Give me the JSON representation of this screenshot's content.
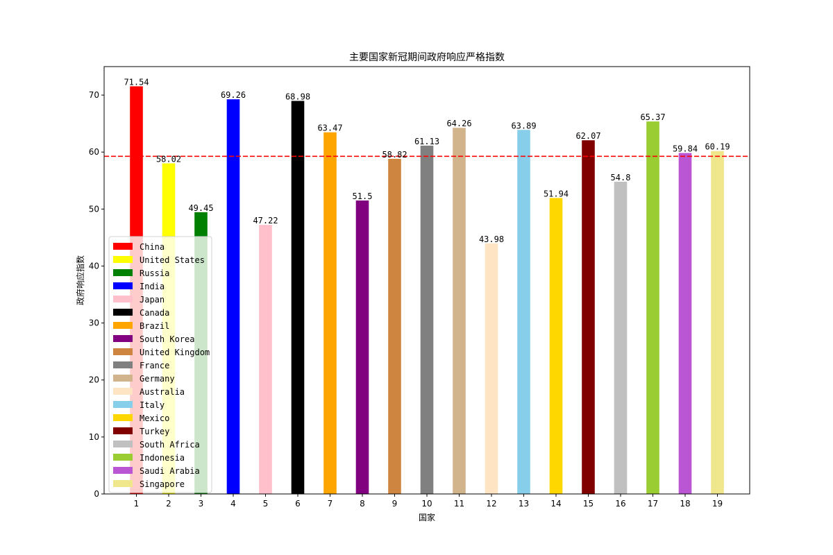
{
  "chart_data": {
    "type": "bar",
    "title": "主要国家新冠期间政府响应严格指数",
    "xlabel": "国家",
    "ylabel": "政府响应指数",
    "categories": [
      "1",
      "2",
      "3",
      "4",
      "5",
      "6",
      "7",
      "8",
      "9",
      "10",
      "11",
      "12",
      "13",
      "14",
      "15",
      "16",
      "17",
      "18",
      "19"
    ],
    "series": [
      {
        "name": "China",
        "value": 71.54,
        "label": "71.54",
        "color": "#ff0000"
      },
      {
        "name": "United States",
        "value": 58.02,
        "label": "58.02",
        "color": "#ffff00"
      },
      {
        "name": "Russia",
        "value": 49.45,
        "label": "49.45",
        "color": "#008000"
      },
      {
        "name": "India",
        "value": 69.26,
        "label": "69.26",
        "color": "#0000ff"
      },
      {
        "name": "Japan",
        "value": 47.22,
        "label": "47.22",
        "color": "#ffc0cb"
      },
      {
        "name": "Canada",
        "value": 68.98,
        "label": "68.98",
        "color": "#000000"
      },
      {
        "name": "Brazil",
        "value": 63.47,
        "label": "63.47",
        "color": "#ffa500"
      },
      {
        "name": "South Korea",
        "value": 51.5,
        "label": "51.5",
        "color": "#800080"
      },
      {
        "name": "United Kingdom",
        "value": 58.82,
        "label": "58.82",
        "color": "#cd853f"
      },
      {
        "name": "France",
        "value": 61.13,
        "label": "61.13",
        "color": "#808080"
      },
      {
        "name": "Germany",
        "value": 64.26,
        "label": "64.26",
        "color": "#d2b48c"
      },
      {
        "name": "Australia",
        "value": 43.98,
        "label": "43.98",
        "color": "#ffe4c4"
      },
      {
        "name": "Italy",
        "value": 63.89,
        "label": "63.89",
        "color": "#87ceeb"
      },
      {
        "name": "Mexico",
        "value": 51.94,
        "label": "51.94",
        "color": "#ffd700"
      },
      {
        "name": "Turkey",
        "value": 62.07,
        "label": "62.07",
        "color": "#800000"
      },
      {
        "name": "South Africa",
        "value": 54.8,
        "label": "54.8",
        "color": "#c0c0c0"
      },
      {
        "name": "Indonesia",
        "value": 65.37,
        "label": "65.37",
        "color": "#9acd32"
      },
      {
        "name": "Saudi Arabia",
        "value": 59.84,
        "label": "59.84",
        "color": "#ba55d3"
      },
      {
        "name": "Singapore",
        "value": 60.19,
        "label": "60.19",
        "color": "#f0e68c"
      }
    ],
    "mean_line": {
      "value": 59.26,
      "color": "#ff0000",
      "style": "dashed"
    },
    "ylim": [
      0,
      75
    ],
    "yticks": [
      0,
      10,
      20,
      30,
      40,
      50,
      60,
      70
    ],
    "grid": false,
    "legend": {
      "position": "lower-left"
    }
  }
}
